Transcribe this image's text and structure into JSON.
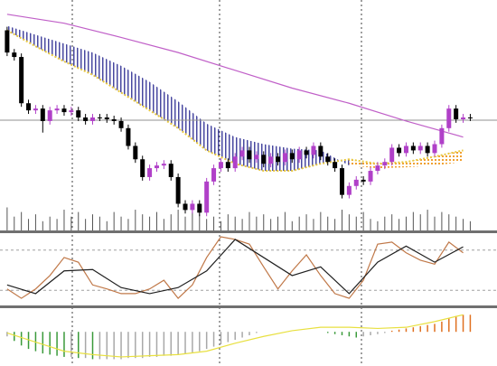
{
  "chart_data": [
    {
      "type": "candlestick",
      "xlim": [
        -1,
        68.75
      ],
      "ylim": [
        0,
        255
      ],
      "up_color": "#b040c8",
      "down_color": "#000000",
      "open": [
        225,
        200,
        195,
        143,
        135,
        137,
        123,
        135,
        137,
        133,
        135,
        127,
        123,
        127,
        127,
        125,
        123,
        115,
        95,
        80,
        60,
        70,
        73,
        75,
        60,
        30,
        23,
        30,
        20,
        55,
        70,
        77,
        70,
        83,
        90,
        80,
        85,
        75,
        83,
        77,
        87,
        80,
        90,
        85,
        95,
        83,
        77,
        70,
        40,
        50,
        57,
        55,
        67,
        73,
        77,
        93,
        87,
        95,
        90,
        95,
        87,
        97,
        115,
        137,
        125,
        127
      ],
      "high": [
        229,
        204,
        199,
        147,
        141,
        141,
        139,
        141,
        141,
        139,
        139,
        131,
        131,
        131,
        131,
        129,
        127,
        119,
        99,
        84,
        74,
        77,
        79,
        79,
        64,
        34,
        34,
        34,
        59,
        74,
        81,
        81,
        87,
        94,
        94,
        89,
        89,
        87,
        87,
        91,
        91,
        94,
        94,
        99,
        99,
        87,
        81,
        74,
        54,
        61,
        61,
        71,
        77,
        81,
        97,
        97,
        99,
        99,
        99,
        99,
        101,
        119,
        141,
        141,
        131,
        131
      ],
      "low": [
        196,
        191,
        139,
        131,
        131,
        110,
        119,
        131,
        129,
        129,
        123,
        119,
        119,
        123,
        121,
        119,
        111,
        91,
        76,
        56,
        56,
        66,
        69,
        56,
        26,
        19,
        19,
        16,
        16,
        51,
        66,
        66,
        66,
        79,
        76,
        76,
        71,
        71,
        73,
        73,
        76,
        76,
        81,
        81,
        79,
        73,
        66,
        36,
        36,
        46,
        51,
        51,
        63,
        69,
        73,
        83,
        83,
        86,
        86,
        83,
        83,
        93,
        111,
        121,
        121,
        123
      ],
      "close": [
        200,
        195,
        143,
        135,
        137,
        123,
        135,
        137,
        133,
        135,
        127,
        123,
        127,
        127,
        125,
        123,
        115,
        95,
        80,
        60,
        70,
        73,
        75,
        60,
        30,
        23,
        30,
        20,
        55,
        70,
        77,
        70,
        83,
        90,
        80,
        85,
        75,
        83,
        77,
        87,
        80,
        90,
        85,
        95,
        83,
        77,
        70,
        40,
        50,
        57,
        55,
        67,
        73,
        77,
        93,
        87,
        95,
        90,
        95,
        87,
        97,
        115,
        137,
        125,
        127,
        127
      ],
      "volume": {
        "color": "#555555",
        "y2lim": [
          0,
          100
        ],
        "values": [
          10,
          6,
          8,
          5,
          7,
          4,
          6,
          5,
          9,
          6,
          8,
          5,
          7,
          6,
          4,
          8,
          6,
          5,
          9,
          7,
          6,
          8,
          5,
          7,
          9,
          6,
          8,
          7,
          5,
          6,
          4,
          7,
          6,
          5,
          8,
          6,
          7,
          5,
          6,
          8,
          4,
          6,
          7,
          5,
          8,
          6,
          5,
          9,
          7,
          6,
          8,
          5,
          4,
          6,
          7,
          5,
          6,
          8,
          7,
          9,
          6,
          8,
          7,
          6,
          5,
          4
        ]
      },
      "moving_average": {
        "color": "#c060c8",
        "x": [
          0,
          8,
          16,
          24,
          32,
          40,
          48,
          56,
          64
        ],
        "values": [
          243,
          233,
          217,
          200,
          180,
          160,
          143,
          123,
          105
        ]
      },
      "price_line": {
        "color": "#909090",
        "value": 124
      },
      "cloud": {
        "x": [
          0,
          4,
          8,
          12,
          16,
          20,
          24,
          28,
          32,
          36,
          40,
          44,
          48,
          52,
          56,
          60,
          64
        ],
        "span_a": [
          230,
          220,
          210,
          200,
          185,
          167,
          145,
          120,
          105,
          97,
          92,
          90,
          73,
          70,
          71,
          73,
          77
        ],
        "span_b": [
          225,
          207,
          190,
          175,
          155,
          135,
          115,
          90,
          75,
          67,
          67,
          75,
          80,
          75,
          77,
          83,
          90
        ],
        "up_color": "#4848a0",
        "down_color": "#f0a030",
        "span_b_color": "#e8c840"
      }
    },
    {
      "type": "line",
      "xlim": [
        -1,
        68.75
      ],
      "ylim": [
        0,
        100
      ],
      "levels": [
        80,
        20
      ],
      "level_color": "#a0a0a0",
      "lines": [
        {
          "color": "#c07848",
          "x": [
            0,
            2,
            4,
            6,
            8,
            10,
            12,
            14,
            16,
            18,
            20,
            22,
            24,
            26,
            28,
            30,
            32,
            34,
            36,
            38,
            40,
            42,
            44,
            46,
            48,
            50,
            52,
            54,
            56,
            58,
            60,
            62,
            64
          ],
          "values": [
            22,
            8,
            22,
            42,
            69,
            62,
            28,
            22,
            15,
            15,
            22,
            35,
            8,
            28,
            69,
            100,
            96,
            89,
            55,
            22,
            49,
            73,
            42,
            15,
            8,
            35,
            89,
            92,
            76,
            65,
            59,
            92,
            76
          ]
        },
        {
          "color": "#202020",
          "x": [
            0,
            4,
            8,
            12,
            16,
            20,
            24,
            28,
            32,
            36,
            40,
            44,
            48,
            52,
            56,
            60,
            64
          ],
          "values": [
            28,
            15,
            49,
            51,
            24,
            15,
            24,
            49,
            96,
            69,
            42,
            55,
            15,
            62,
            86,
            62,
            85
          ]
        }
      ]
    },
    {
      "type": "histogram",
      "xlim": [
        -1,
        68.75
      ],
      "ylim": [
        -30,
        20
      ],
      "color_falling": "#3a9a3a",
      "color_rising": "#a8a8a8",
      "color_positive": "#e07020",
      "values": [
        -4,
        -8,
        -12,
        -15,
        -17,
        -19,
        -20,
        -21,
        -22,
        -22,
        -23,
        -23,
        -24,
        -24,
        -24,
        -24,
        -24,
        -23,
        -23,
        -23,
        -22,
        -22,
        -21,
        -21,
        -20,
        -19,
        -18,
        -17,
        -15,
        -13,
        -11,
        -9,
        -7,
        -5,
        -3,
        -1,
        0,
        0,
        0,
        0,
        0,
        0,
        0,
        0,
        0,
        -1,
        -2,
        -3,
        -4,
        -5,
        -4,
        -3,
        -2,
        -1,
        1,
        2,
        3,
        4,
        5,
        6,
        7,
        9,
        12,
        14,
        15,
        15
      ],
      "signal": {
        "color": "#e8e040",
        "x": [
          0,
          4,
          8,
          12,
          16,
          20,
          24,
          28,
          32,
          36,
          40,
          44,
          48,
          52,
          56,
          60,
          64
        ],
        "values": [
          -1,
          -9,
          -17,
          -20,
          -22,
          -21,
          -20,
          -17,
          -10,
          -4,
          1,
          4,
          4,
          3,
          4,
          9,
          15
        ]
      }
    }
  ]
}
